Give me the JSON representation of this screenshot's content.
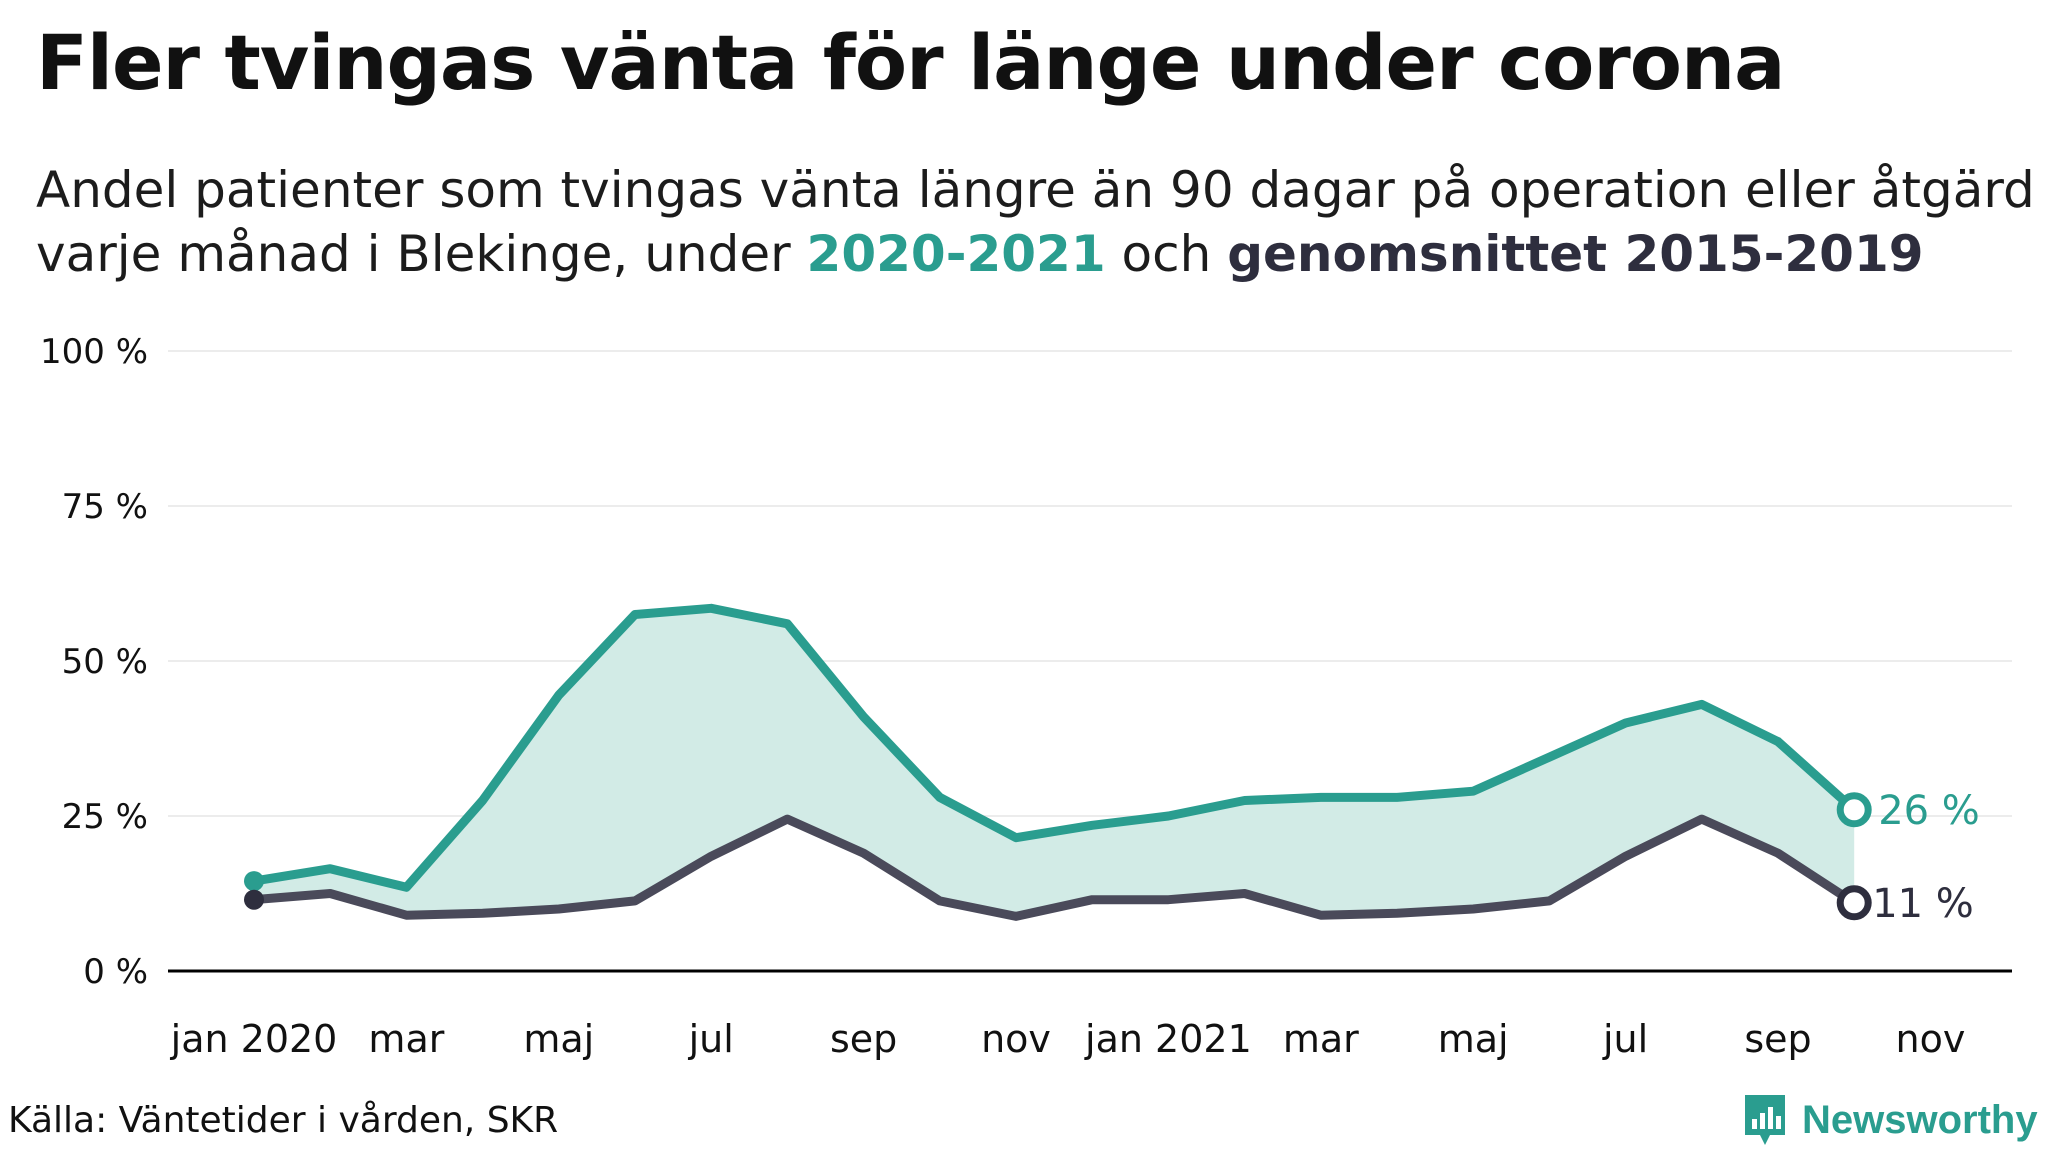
{
  "title": "Fler tvingas vänta för länge under corona",
  "subtitle": {
    "part1": "Andel patienter som tvingas vänta längre än 90 dagar på operation eller åtgärd",
    "part2": "varje månad i Blekinge, under ",
    "highlight1": "2020-2021",
    "part3": " och ",
    "highlight2": "genomsnittet 2015-2019"
  },
  "source": "Källa: Väntetider i vården, SKR",
  "brand": {
    "name": "Newsworthy",
    "icon": "newsworthy-logo-icon"
  },
  "colors": {
    "series_2020_2021": "#2a9d8f",
    "average": "#4a4a5a",
    "band_fill": "#d2ebe6",
    "grid": "#e6e6e6",
    "axis": "#000000"
  },
  "chart_data": {
    "type": "line",
    "x": [
      "2020-01",
      "2020-02",
      "2020-03",
      "2020-04",
      "2020-05",
      "2020-06",
      "2020-07",
      "2020-08",
      "2020-09",
      "2020-10",
      "2020-11",
      "2020-12",
      "2021-01",
      "2021-02",
      "2021-03",
      "2021-04",
      "2021-05",
      "2021-06",
      "2021-07",
      "2021-08",
      "2021-09",
      "2021-10"
    ],
    "series": [
      {
        "name": "2020-2021",
        "values": [
          14.5,
          16.5,
          13.5,
          27.5,
          44.5,
          57.5,
          58.5,
          56,
          41,
          28,
          21.5,
          23.5,
          25,
          27.5,
          28,
          28,
          29,
          34.5,
          40,
          43,
          37,
          26
        ]
      },
      {
        "name": "genomsnittet 2015-2019",
        "values": [
          11.5,
          12.5,
          9,
          9.3,
          10,
          11.3,
          18.5,
          24.5,
          19,
          11.3,
          8.8,
          11.5,
          11.5,
          12.5,
          9,
          9.3,
          10,
          11.3,
          18.5,
          24.5,
          19,
          11
        ]
      }
    ],
    "end_labels": [
      "26 %",
      "11 %"
    ],
    "y_ticks": [
      0,
      25,
      50,
      75,
      100
    ],
    "y_tick_labels": [
      "0 %",
      "25 %",
      "50 %",
      "75 %",
      "100 %"
    ],
    "ylim": [
      0,
      100
    ],
    "x_tick_labels": [
      "jan 2020",
      "mar",
      "maj",
      "jul",
      "sep",
      "nov",
      "jan 2021",
      "mar",
      "maj",
      "jul",
      "sep",
      "nov"
    ],
    "x_tick_months": [
      "2020-01",
      "2020-03",
      "2020-05",
      "2020-07",
      "2020-09",
      "2020-11",
      "2021-01",
      "2021-03",
      "2021-05",
      "2021-07",
      "2021-09",
      "2021-11"
    ],
    "grid": true,
    "legend": "none"
  }
}
